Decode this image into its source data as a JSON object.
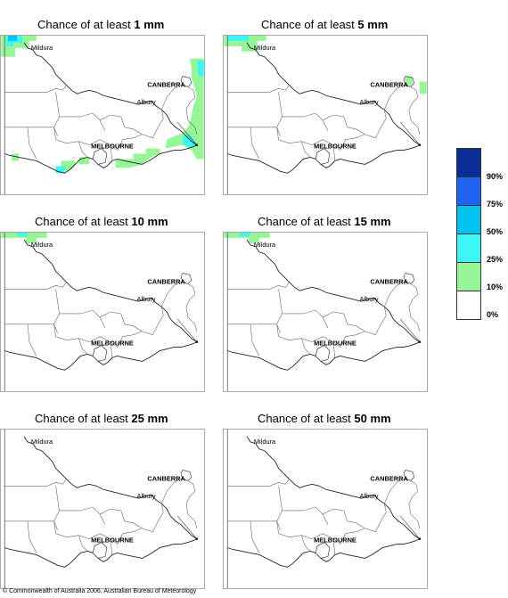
{
  "panels": [
    {
      "prefix": "Chance of at least ",
      "amount": "1 mm",
      "shading": "heavy"
    },
    {
      "prefix": "Chance of at least ",
      "amount": "5 mm",
      "shading": "medium"
    },
    {
      "prefix": "Chance of at least ",
      "amount": "10 mm",
      "shading": "light"
    },
    {
      "prefix": "Chance of at least ",
      "amount": "15 mm",
      "shading": "light"
    },
    {
      "prefix": "Chance of at least ",
      "amount": "25 mm",
      "shading": "none"
    },
    {
      "prefix": "Chance of at least ",
      "amount": "50 mm",
      "shading": "none"
    }
  ],
  "places": {
    "mildura": "Mildura",
    "canberra": "CANBERRA",
    "albury": "Albury",
    "melbourne": "MELBOURNE"
  },
  "legend": {
    "colors": [
      "#0a2d96",
      "#1e64f0",
      "#00c3f0",
      "#3cf5f5",
      "#96f596",
      "#ffffff"
    ],
    "labels": [
      "90%",
      "75%",
      "50%",
      "25%",
      "10%",
      "0%"
    ]
  },
  "copyright": "© Commonwealth of Australia 2006, Australian Bureau of Meteorology"
}
